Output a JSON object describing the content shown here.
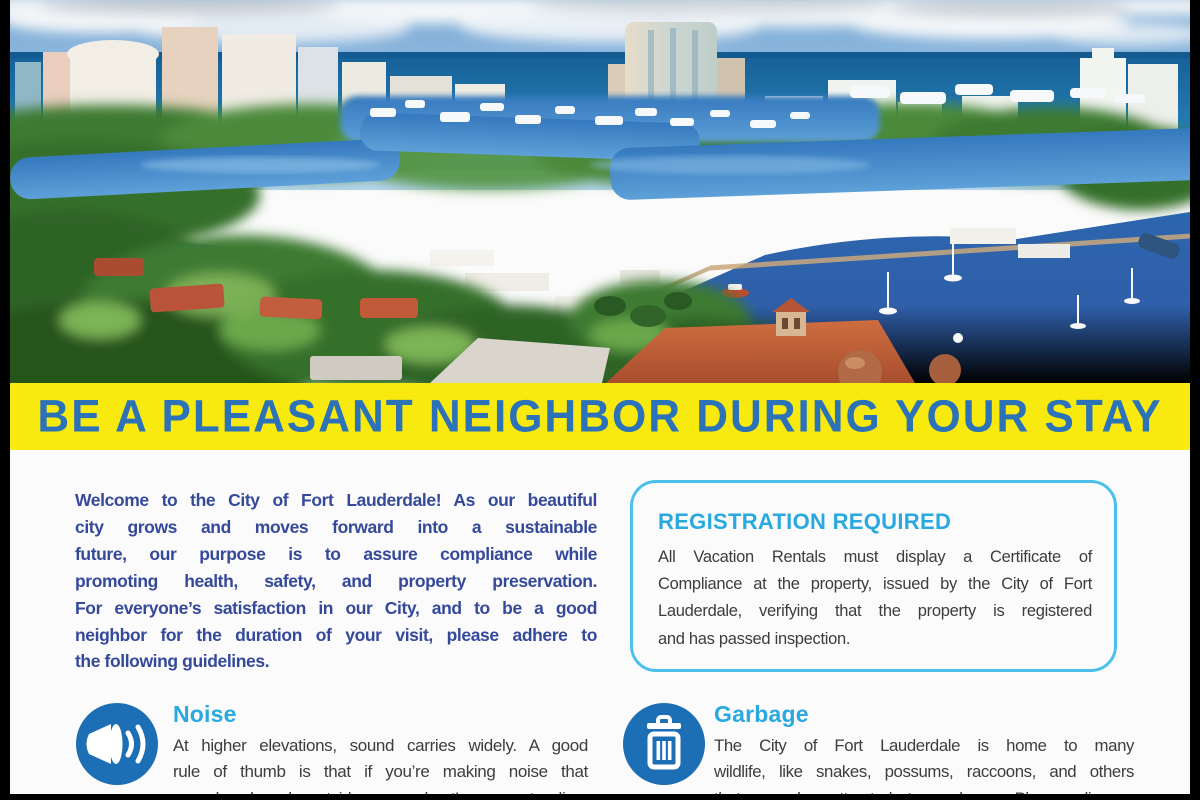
{
  "meta": {
    "title": "Be A Pleasant Neighbor During Your Stay"
  },
  "banner": {
    "text": "BE A PLEASANT NEIGHBOR DURING YOUR STAY"
  },
  "hero": {
    "description": "Aerial photo of Fort Lauderdale waterways, skyline, boats and rooftops"
  },
  "intro": {
    "lines": [
      "Welcome to the City of Fort Lauderdale! As our beautiful",
      "city grows and moves forward into a sustainable",
      "future, our purpose is to assure compliance while",
      "promoting health, safety, and property preservation.",
      "For everyone’s satisfaction in our City, and to be a good",
      "neighbor for the duration of your visit, please adhere to",
      "the following guidelines."
    ]
  },
  "registration": {
    "title": "REGISTRATION REQUIRED",
    "lines": [
      "All Vacation Rentals must display a Certificate of",
      "Compliance at the property, issued by the City of Fort",
      "Lauderdale, verifying that the property is registered",
      "and has passed inspection."
    ]
  },
  "sections": [
    {
      "id": "noise",
      "icon": "speaker-icon",
      "title": "Noise",
      "lines": [
        "At higher elevations, sound carries widely. A good",
        "rule of thumb is that if you’re making noise that",
        "can be heard outside your host’s property line,"
      ]
    },
    {
      "id": "garbage",
      "icon": "trash-icon",
      "title": "Garbage",
      "lines": [
        "The City of Fort Lauderdale is home to many",
        "wildlife, like snakes, possums, raccoons, and others",
        "that can be attracted to garbage. Please dispose"
      ]
    }
  ],
  "colors": {
    "banner_bg": "#F8EA0E",
    "banner_text": "#2B72B8",
    "intro_text": "#35499B",
    "accent_blue": "#29A9E0",
    "icon_bg": "#1D6FB5",
    "body_text": "#3D3D3D",
    "box_border": "#4CC0EC",
    "page_bg": "#FBFBFB",
    "frame_bg": "#000000"
  }
}
